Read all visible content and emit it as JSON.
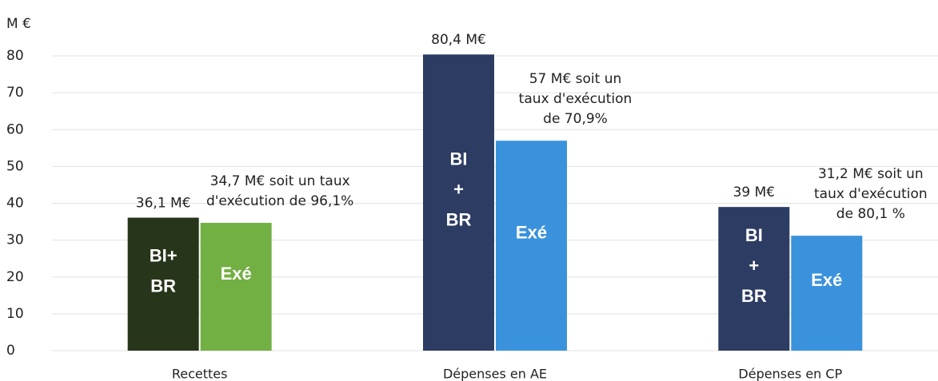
{
  "chart_data": {
    "type": "bar",
    "unit_label": "M €",
    "categories": [
      "Recettes",
      "Dépenses en AE",
      "Dépenses en CP"
    ],
    "series": [
      {
        "colors": [
          "#27351a",
          "#2d3c63",
          "#2d3c63"
        ],
        "values": [
          36.1,
          80.4,
          39
        ],
        "value_labels": [
          [
            "36,1 M€"
          ],
          [
            "80,4 M€"
          ],
          [
            "39 M€"
          ]
        ],
        "bar_labels": [
          [
            "BI+",
            "BR"
          ],
          [
            "BI",
            "+",
            "BR"
          ],
          [
            "BI",
            "+",
            "BR"
          ]
        ]
      },
      {
        "colors": [
          "#72b043",
          "#3b92dc",
          "#3b92dc"
        ],
        "values": [
          34.7,
          57,
          31.2
        ],
        "value_labels": [
          [
            "34,7 M€ soit un taux",
            "d'exécution de 96,1%"
          ],
          [
            "57 M€ soit un",
            "taux d'exécution",
            "de 70,9%"
          ],
          [
            "31,2 M€ soit un",
            "taux d'exécution",
            "de 80,1 %"
          ]
        ],
        "bar_labels": [
          [
            "Exé"
          ],
          [
            "Exé"
          ],
          [
            "Exé"
          ]
        ]
      }
    ],
    "ylim": [
      0,
      85
    ],
    "yticks": [
      0,
      10,
      20,
      30,
      40,
      50,
      60,
      70,
      80
    ],
    "grid": true
  }
}
